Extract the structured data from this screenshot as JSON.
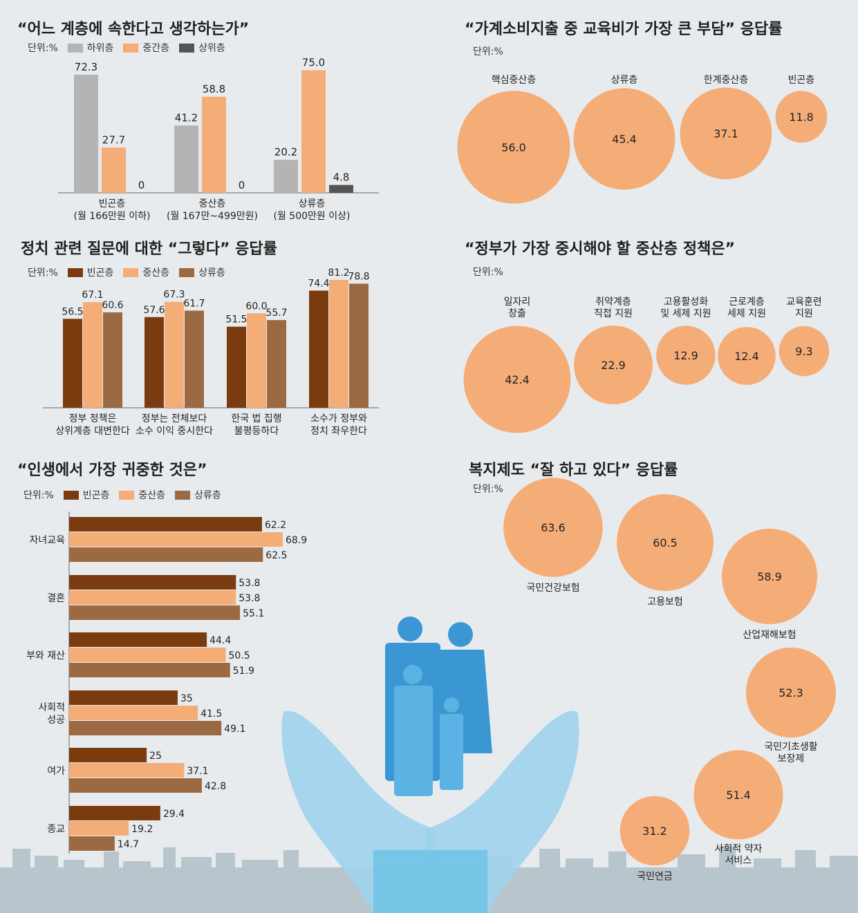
{
  "colors": {
    "low": "#b4b4b4",
    "mid": "#f5ad78",
    "high": "#555555",
    "poor": "#7a3c0e",
    "middle": "#f5ad78",
    "upper": "#9c6a42",
    "bubble": "#f5ad78",
    "city": "#b8c4cb",
    "hand": "#8fc9e6",
    "family": "#2e8fcf"
  },
  "chart_data": [
    {
      "id": "class-identity",
      "type": "bar",
      "title": "“어느 계층에 속한다고 생각하는가”",
      "unit": "단위:%",
      "categories": [
        "빈곤층",
        "중산층",
        "상류층"
      ],
      "category_sub": [
        "(월 166만원 이하)",
        "(월 167만~499만원)",
        "(월 500만원 이상)"
      ],
      "series": [
        {
          "name": "하위층",
          "values": [
            72.3,
            41.2,
            20.2
          ],
          "labels": [
            "72.3",
            "41.2",
            "20.2"
          ]
        },
        {
          "name": "중간층",
          "values": [
            27.7,
            58.8,
            75.0
          ],
          "labels": [
            "27.7",
            "58.8",
            "75.0"
          ]
        },
        {
          "name": "상위층",
          "values": [
            0,
            0,
            4.8
          ],
          "labels": [
            "0",
            "0",
            "4.8"
          ]
        }
      ],
      "ylim": [
        0,
        80
      ]
    },
    {
      "id": "edu-burden",
      "type": "bubble",
      "title": "“가계소비지출 중 교육비가 가장 큰 부담” 응답률",
      "unit": "단위:%",
      "items": [
        {
          "label": "핵심중산층",
          "value": 56.0,
          "text": "56.0"
        },
        {
          "label": "상류층",
          "value": 45.4,
          "text": "45.4"
        },
        {
          "label": "한계중산층",
          "value": 37.1,
          "text": "37.1"
        },
        {
          "label": "빈곤층",
          "value": 11.8,
          "text": "11.8"
        }
      ]
    },
    {
      "id": "politics",
      "type": "bar",
      "title": "정치 관련 질문에 대한 “그렇다” 응답률",
      "unit": "단위:%",
      "categories": [
        "정부 정책은\n상위계층 대변한다",
        "정부는 전체보다\n소수 이익 중시한다",
        "한국 법 집행\n불평등하다",
        "소수가 정부와\n정치 좌우한다"
      ],
      "series": [
        {
          "name": "빈곤층",
          "values": [
            56.5,
            57.6,
            51.5,
            74.4
          ],
          "labels": [
            "56.5",
            "57.6",
            "51.5",
            "74.4"
          ]
        },
        {
          "name": "중산층",
          "values": [
            67.1,
            67.3,
            60.0,
            81.2
          ],
          "labels": [
            "67.1",
            "67.3",
            "60.0",
            "81.2"
          ]
        },
        {
          "name": "상류층",
          "values": [
            60.6,
            61.7,
            55.7,
            78.8
          ],
          "labels": [
            "60.6",
            "61.7",
            "55.7",
            "78.8"
          ]
        }
      ],
      "ylim": [
        0,
        90
      ]
    },
    {
      "id": "middle-policy",
      "type": "bubble",
      "title": "“정부가 가장 중시해야 할 중산층 정책은”",
      "unit": "단위:%",
      "items": [
        {
          "label": "일자리\n창출",
          "value": 42.4,
          "text": "42.4"
        },
        {
          "label": "취약계층\n직접 지원",
          "value": 22.9,
          "text": "22.9"
        },
        {
          "label": "고용활성화\n및 세제 지원",
          "value": 12.9,
          "text": "12.9"
        },
        {
          "label": "근로계층\n세제 지원",
          "value": 12.4,
          "text": "12.4"
        },
        {
          "label": "교육훈련\n지원",
          "value": 9.3,
          "text": "9.3"
        }
      ]
    },
    {
      "id": "life-values",
      "type": "bar",
      "orientation": "horizontal",
      "title": "“인생에서 가장 귀중한 것은”",
      "unit": "단위:%",
      "categories": [
        "자녀교육",
        "결혼",
        "부와 재산",
        "사회적\n성공",
        "여가",
        "종교"
      ],
      "series": [
        {
          "name": "빈곤층",
          "values": [
            62.2,
            53.8,
            44.4,
            35,
            25,
            29.4
          ],
          "labels": [
            "62.2",
            "53.8",
            "44.4",
            "35",
            "25",
            "29.4"
          ]
        },
        {
          "name": "중산층",
          "values": [
            68.9,
            53.8,
            50.5,
            41.5,
            37.1,
            19.2
          ],
          "labels": [
            "68.9",
            "53.8",
            "50.5",
            "41.5",
            "37.1",
            "19.2"
          ]
        },
        {
          "name": "상류층",
          "values": [
            62.5,
            55.1,
            51.9,
            49.1,
            42.8,
            14.7
          ],
          "labels": [
            "62.5",
            "55.1",
            "51.9",
            "49.1",
            "42.8",
            "14.7"
          ]
        }
      ],
      "xlim": [
        0,
        70
      ]
    },
    {
      "id": "welfare",
      "type": "bubble",
      "title": "복지제도 “잘 하고 있다” 응답률",
      "unit": "단위:%",
      "items": [
        {
          "label": "국민건강보험",
          "value": 63.6,
          "text": "63.6"
        },
        {
          "label": "고용보험",
          "value": 60.5,
          "text": "60.5"
        },
        {
          "label": "산업재해보험",
          "value": 58.9,
          "text": "58.9"
        },
        {
          "label": "국민기초생활\n보장제",
          "value": 52.3,
          "text": "52.3"
        },
        {
          "label": "사회적 약자\n서비스",
          "value": 51.4,
          "text": "51.4"
        },
        {
          "label": "국민연금",
          "value": 31.2,
          "text": "31.2"
        }
      ]
    }
  ]
}
